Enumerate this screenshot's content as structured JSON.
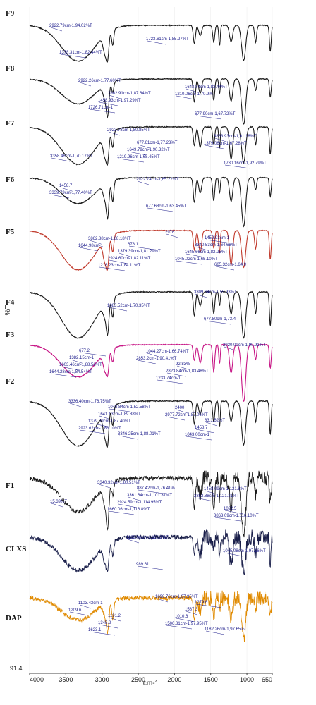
{
  "chart_data": {
    "type": "line",
    "xlabel": "cm-1",
    "ylabel": "%T",
    "xlim": [
      4000,
      650
    ],
    "x_ticks": [
      "4000",
      "3500",
      "3000",
      "2500",
      "2000",
      "1500",
      "1000",
      "650"
    ],
    "y_bottom_tick": "91.4",
    "colors": {
      "default": "#1a1a1a",
      "F5": "#c0392b",
      "F3": "#c71585",
      "CLXS": "#1a1f4a",
      "DAP": "#e08a00",
      "annotation": "#1a1a8a"
    },
    "series": [
      {
        "name": "F9",
        "annotations": [
          "2922.79cm-1,94.02%T",
          "1723.61cm-1,85.27%T",
          "1378.31cm-1,82.44%T"
        ]
      },
      {
        "name": "F8",
        "annotations": [
          "2922.26cm-1,77.60%T",
          "1210.06cm-1,70.9%T",
          "1726.71cm-1",
          "1643.84cm-1,83.44%T",
          "1458.93cm-1,97.29%T",
          "677.90cm-1,67.72%T",
          "2862.91cm-1,87.64%T"
        ]
      },
      {
        "name": "F7",
        "annotations": [
          "2923.73cm-1,80.85%T",
          "1379.06cm-1,67.28%T",
          "1219.96cm-1,68.45%T",
          "3863.93cm-1,61.18%T",
          "1649.79cm-1,90.32%T",
          "1730.16cm-1,92.79%T",
          "677.61cm-1,77.23%T",
          "3358.46cm-1,70.17%T"
        ]
      },
      {
        "name": "F6",
        "annotations": [
          "2922.74cm-1,65.22%T",
          "3339.79cm-1,77.40%T",
          "677.68cm-1,63.45%T",
          "1458.7"
        ]
      },
      {
        "name": "F5",
        "annotations": [
          "2976",
          "1644.98cm-1",
          "1045.02cm-1,65.10%T",
          "3862.88cm-1,88.18%T",
          "1645.66cm-1,82.25%T",
          "1218.23cm-1,84.11%T",
          "3340.53cm-1,64.68%T",
          "2924.60cm-1,82.11%T",
          "1459.93cm-1",
          "1379.39cm-1,81.29%T",
          "665.32cm-1,64.9",
          "678.1"
        ]
      },
      {
        "name": "F4",
        "annotations": [
          "3309.64cm-1,55.93%T",
          "1083.52cm-1,70.35%T",
          "677.80cm-1,73.4"
        ]
      },
      {
        "name": "F3",
        "annotations": [
          "2920.00cm-1,90.91%T",
          "2853.2cm-1,90.41%T",
          "1644.28cm-1,84.54%T",
          "1044.27cm-1,66.74%T",
          "1603.46cm-1,88.56%T",
          "1233.74cm-1",
          "1382.15cm-1",
          "2823.84cm-1,83.48%T",
          "677.2",
          "92.83%"
        ]
      },
      {
        "name": "F2",
        "annotations": [
          "3336.40cm-1,76.75%T",
          "2977.72cm-1,87.06%T",
          "2923.62cm-1,88.10%T",
          "2400",
          "1379.09cm-1,87.40%T",
          "1043.00cm-1",
          "1641.13cm-1,89.88%T",
          "1458.7",
          "1043.84cm-1,52.58%T",
          "83.1.62%T",
          "3346.25cm-1,88.01%T"
        ]
      },
      {
        "name": "F1",
        "annotations": [
          "3340.32cm-1,80.51%T",
          "2852.88cm-1,121.21%T",
          "1660.06cm-1,116.8%T",
          "1458.09cm-1,121.8%T",
          "2924.59cm-1,114.95%T",
          "3863.09cm-1,116.10%T",
          "3361.64cm-1,101.37%T",
          "1022.5",
          "887.42cm-1,76.41%T",
          "15.39%T"
        ]
      },
      {
        "name": "CLXS",
        "annotations": [
          "1182.06cm-1,115.2%T",
          "1045.08cm-1,97.16%T",
          "989.61"
        ]
      },
      {
        "name": "DAP",
        "annotations": [
          "1698.76cm-1,97.95%T",
          "1209.6",
          "1506.81cm-1,97.95%T",
          "1103.43cm-1",
          "1010.6",
          "1623.1",
          "1587.3",
          "1345.2",
          "1279.6",
          "1191.2",
          "1182.26cm-1,97.65%"
        ]
      }
    ]
  }
}
